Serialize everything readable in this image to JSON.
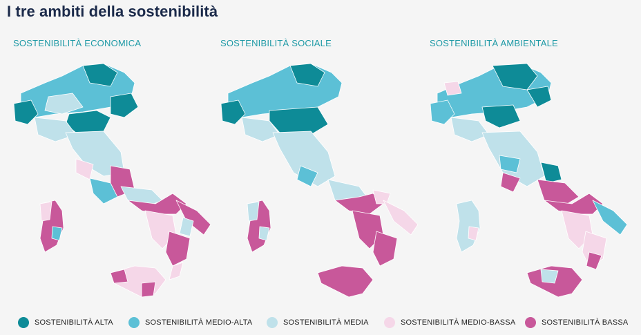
{
  "page": {
    "title": "I tre ambiti della sostenibilità"
  },
  "panels": [
    {
      "title": "SOSTENIBILITÀ ECONOMICA"
    },
    {
      "title": "SOSTENIBILITÀ SOCIALE"
    },
    {
      "title": "SOSTENIBILITÀ AMBIENTALE"
    }
  ],
  "legend": [
    {
      "label": "SOSTENIBILITÀ ALTA",
      "color": "#0e8b97"
    },
    {
      "label": "SOSTENIBILITÀ MEDIO-ALTA",
      "color": "#5cc0d6"
    },
    {
      "label": "SOSTENIBILITÀ MEDIA",
      "color": "#bfe1ea"
    },
    {
      "label": "SOSTENIBILITÀ MEDIO-BASSA",
      "color": "#f5d7e8"
    },
    {
      "label": "SOSTENIBILITÀ BASSA",
      "color": "#c8589a"
    }
  ]
}
